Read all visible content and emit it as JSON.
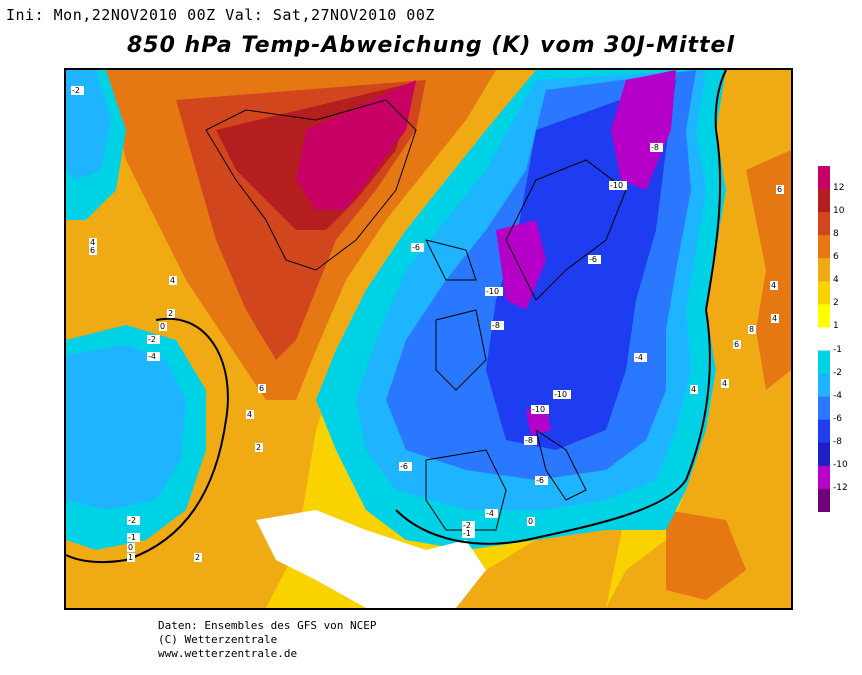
{
  "header": {
    "init_label": "Ini: Mon,22NOV2010 00Z",
    "valid_label": "Val: Sat,27NOV2010 00Z",
    "title": "850 hPa Temp-Abweichung (K) vom 30J-Mittel"
  },
  "legend": {
    "levels": [
      "12",
      "10",
      "8",
      "6",
      "4",
      "2",
      "1",
      "-1",
      "-2",
      "-4",
      "-6",
      "-8",
      "-10",
      "-12"
    ],
    "colors": [
      "#c80064",
      "#b41e1e",
      "#d2461e",
      "#e67814",
      "#f0aa14",
      "#fad200",
      "#ffff00",
      "#ffffff",
      "#00d2e6",
      "#1eb4ff",
      "#2a78ff",
      "#1e3cf0",
      "#1e1ec8",
      "#b400c8",
      "#6e0078"
    ]
  },
  "map_labels": {
    "m2_nw": "-2",
    "p4_wgl": "4",
    "p6_wgl": "6",
    "p4_lab": "4",
    "p2_lab": "2",
    "p0_atl": "0",
    "m2_atl": "-2",
    "m4_atl": "-4",
    "p6_atl": "6",
    "p4_atl2": "4",
    "p2_atl": "2",
    "m6_ice": "-6",
    "m10_scan": "-10",
    "m8_sea": "-8",
    "m6_baltic": "-6",
    "m10_nrus": "-10",
    "m8_nrus": "-8",
    "m4_east": "-4",
    "m10_alps": "-10",
    "m10_alps2": "-10",
    "m8_italy": "-8",
    "m6_balk": "-6",
    "m6_iber": "-6",
    "m4_med": "-4",
    "m2_sp": "-2",
    "m1_sp": "-1",
    "p0_med": "0",
    "m2_sw": "-2",
    "m1_sw": "-1",
    "p0_sw": "0",
    "p1_sw": "1",
    "p2_sw": "2",
    "p6_ural": "6",
    "p4_ural": "4",
    "p4_ural2": "4",
    "p6_cas": "6",
    "p8_cas": "8",
    "p4_turk": "4",
    "p4_turk2": "4"
  },
  "footer": {
    "line1": "Daten: Ensembles des GFS von NCEP",
    "line2": "(C) Wetterzentrale",
    "line3": "www.wetterzentrale.de"
  }
}
